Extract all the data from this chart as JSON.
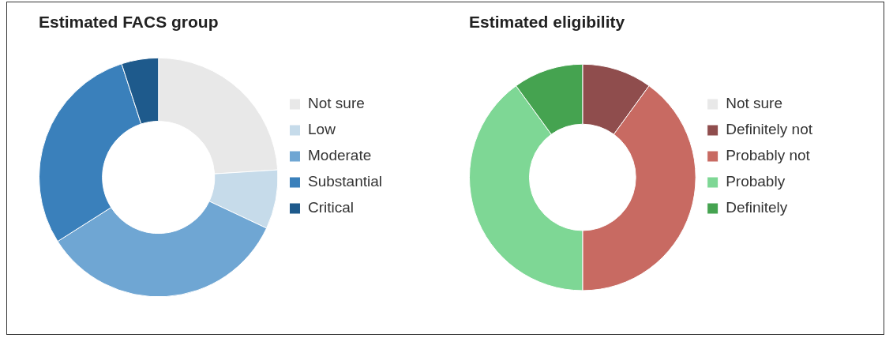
{
  "chart_data": [
    {
      "type": "donut",
      "title": "Estimated FACS group",
      "categories": [
        "Not sure",
        "Low",
        "Moderate",
        "Substantial",
        "Critical"
      ],
      "values": [
        24,
        8,
        34,
        29,
        5
      ],
      "colors": [
        "#e8e8e8",
        "#c6dbea",
        "#6fa6d3",
        "#3a80bb",
        "#1e5a8c"
      ],
      "legend": "right"
    },
    {
      "type": "donut",
      "title": "Estimated eligibility",
      "categories": [
        "Not sure",
        "Definitely not",
        "Probably not",
        "Probably",
        "Definitely"
      ],
      "values": [
        0,
        10,
        40,
        40,
        10
      ],
      "colors": [
        "#e8e8e8",
        "#8f4d4d",
        "#c86a62",
        "#7ed795",
        "#45a350"
      ],
      "legend": "right"
    }
  ]
}
